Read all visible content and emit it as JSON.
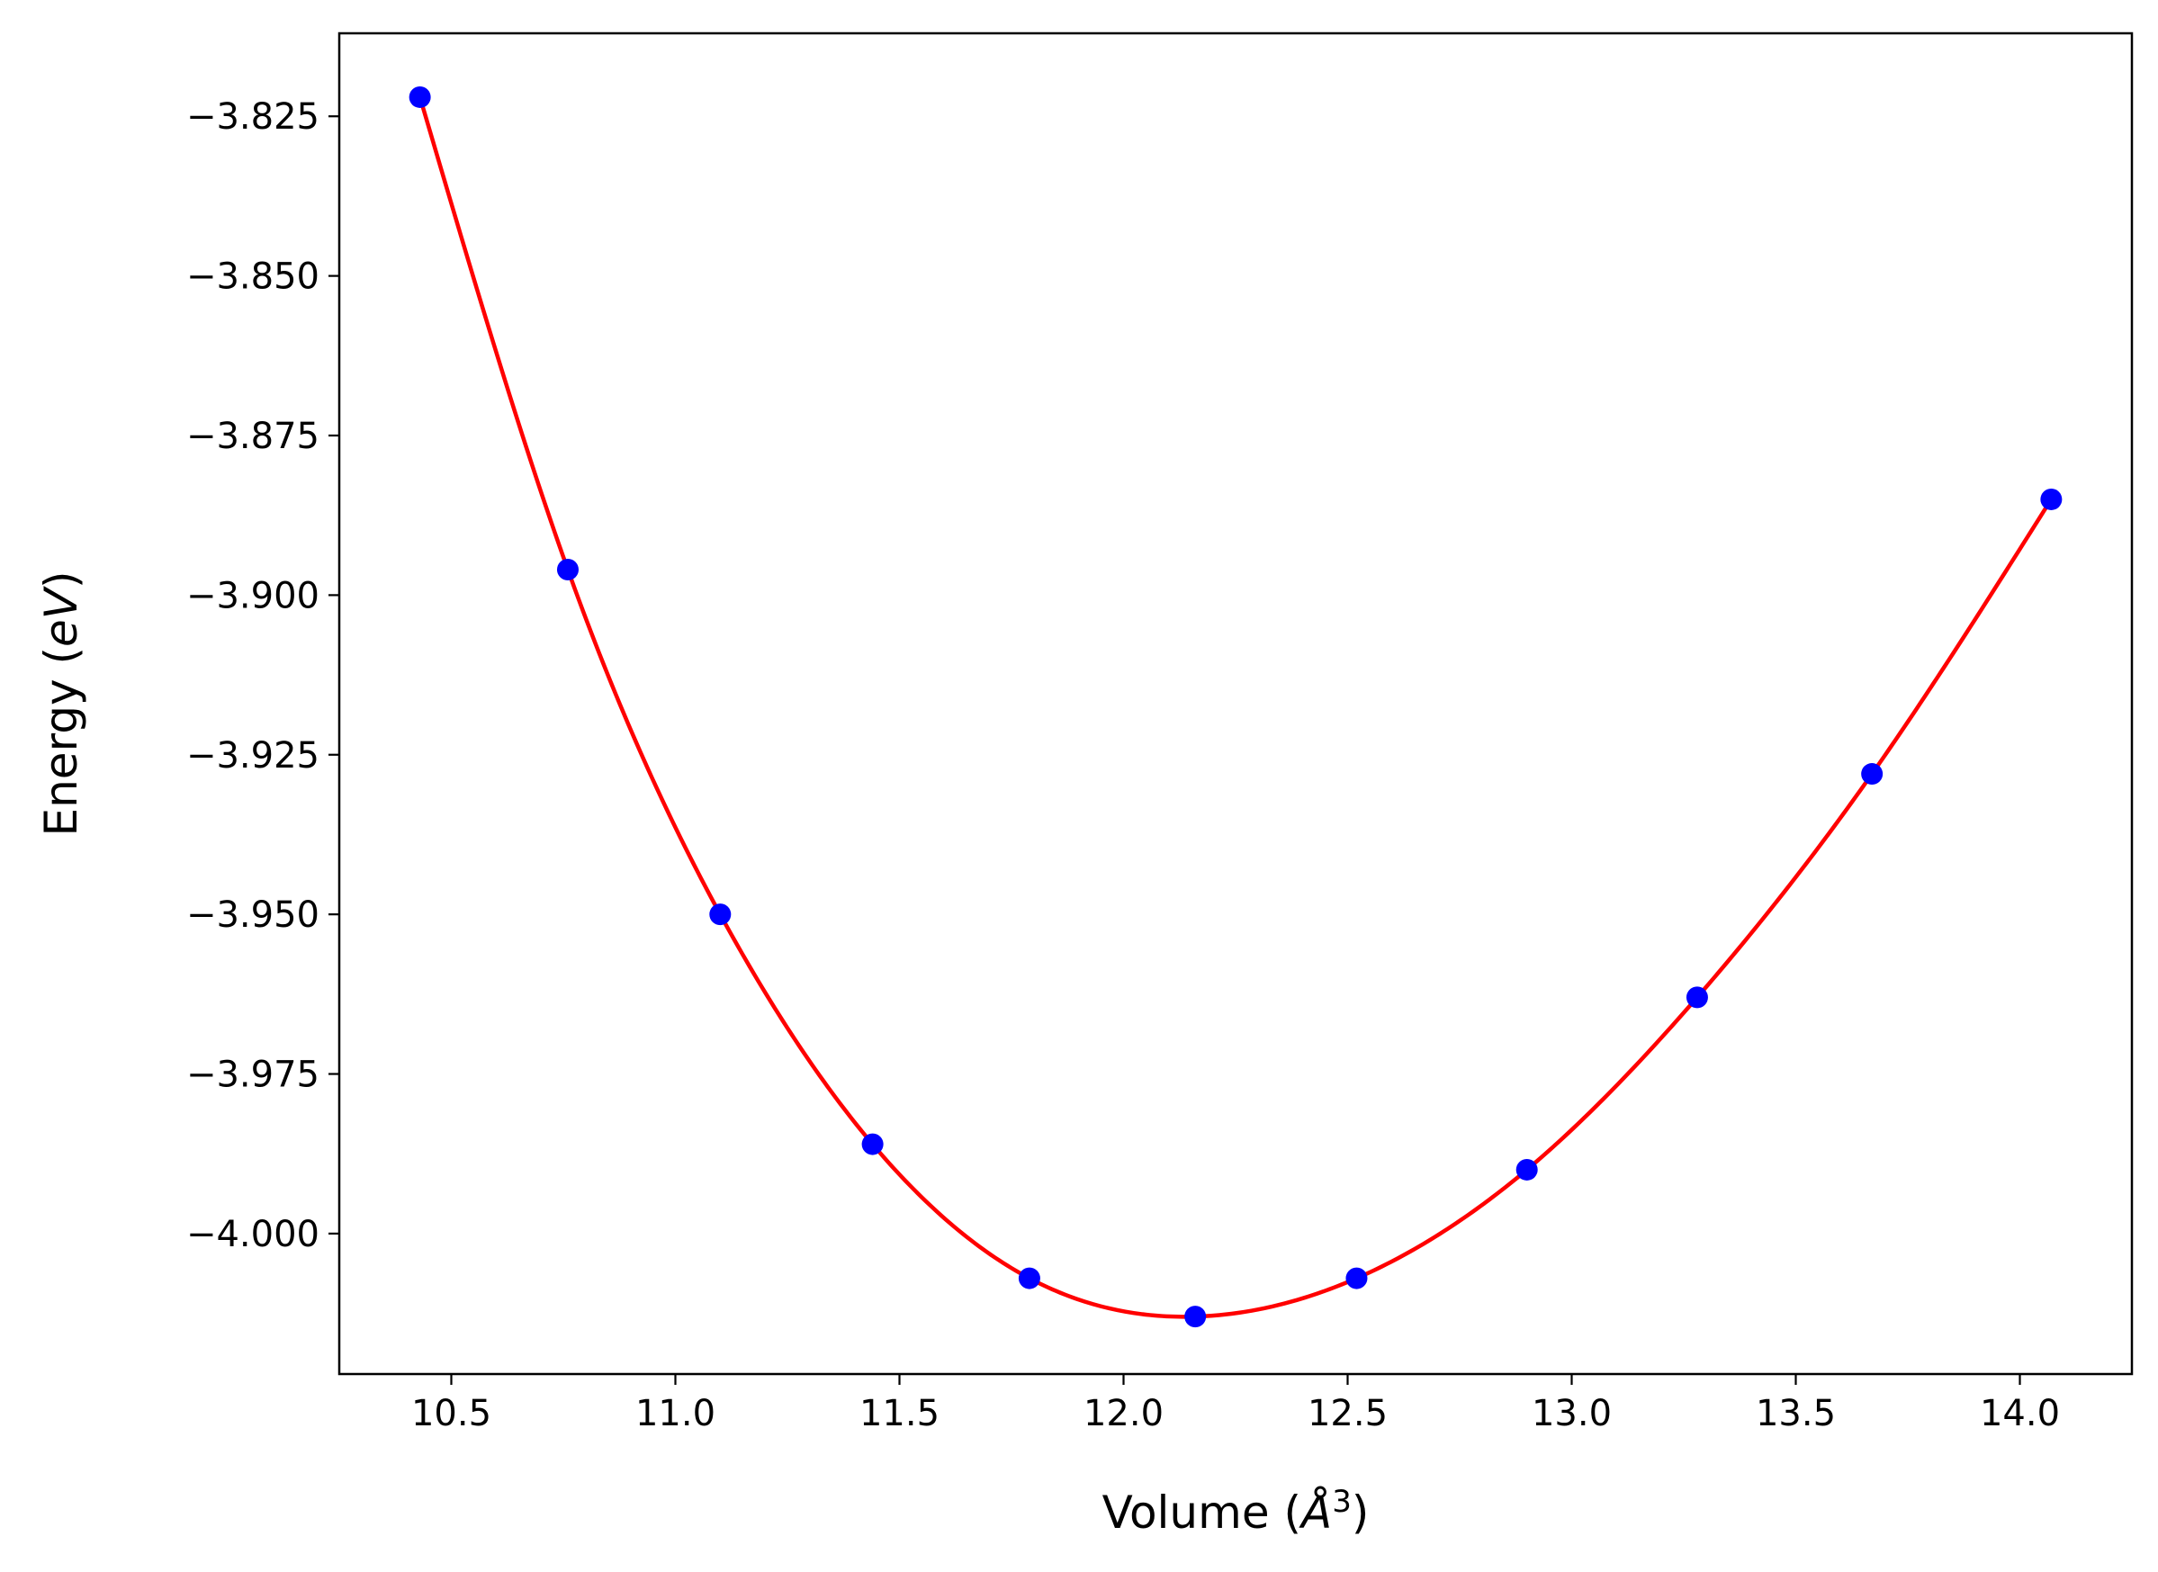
{
  "chart_data": {
    "type": "line",
    "title": "",
    "xlabel": "Volume (Å³)",
    "xlabel_parts": {
      "prefix": "Volume (",
      "symbol": "Å",
      "exponent": "3",
      "suffix": ")"
    },
    "ylabel": "Energy (eV)",
    "ylabel_parts": {
      "prefix": "Energy (",
      "unit": "eV",
      "suffix": ")"
    },
    "xlim": [
      10.25,
      14.25
    ],
    "ylim": [
      -4.022,
      -3.812
    ],
    "x_ticks": [
      10.5,
      11.0,
      11.5,
      12.0,
      12.5,
      13.0,
      13.5,
      14.0
    ],
    "x_tick_labels": [
      "10.5",
      "11.0",
      "11.5",
      "12.0",
      "12.5",
      "13.0",
      "13.5",
      "14.0"
    ],
    "y_ticks": [
      -3.825,
      -3.85,
      -3.875,
      -3.9,
      -3.925,
      -3.95,
      -3.975,
      -4.0
    ],
    "y_tick_labels": [
      "−3.825",
      "−3.850",
      "−3.875",
      "−3.900",
      "−3.925",
      "−3.950",
      "−3.975",
      "−4.000"
    ],
    "grid": false,
    "series": [
      {
        "kind": "scatter",
        "color": "#0000ff",
        "x": [
          10.43,
          10.76,
          11.1,
          11.44,
          11.79,
          12.16,
          12.52,
          12.9,
          13.28,
          13.67,
          14.07
        ],
        "y": [
          -3.822,
          -3.896,
          -3.95,
          -3.986,
          -4.007,
          -4.013,
          -4.007,
          -3.99,
          -3.963,
          -3.928,
          -3.885
        ]
      },
      {
        "kind": "line",
        "color": "#ff0000",
        "x": [
          10.43,
          10.76,
          11.1,
          11.44,
          11.79,
          12.16,
          12.52,
          12.9,
          13.28,
          13.67,
          14.07
        ],
        "y": [
          -3.822,
          -3.896,
          -3.95,
          -3.986,
          -4.007,
          -4.013,
          -4.007,
          -3.99,
          -3.963,
          -3.928,
          -3.885
        ]
      }
    ]
  }
}
